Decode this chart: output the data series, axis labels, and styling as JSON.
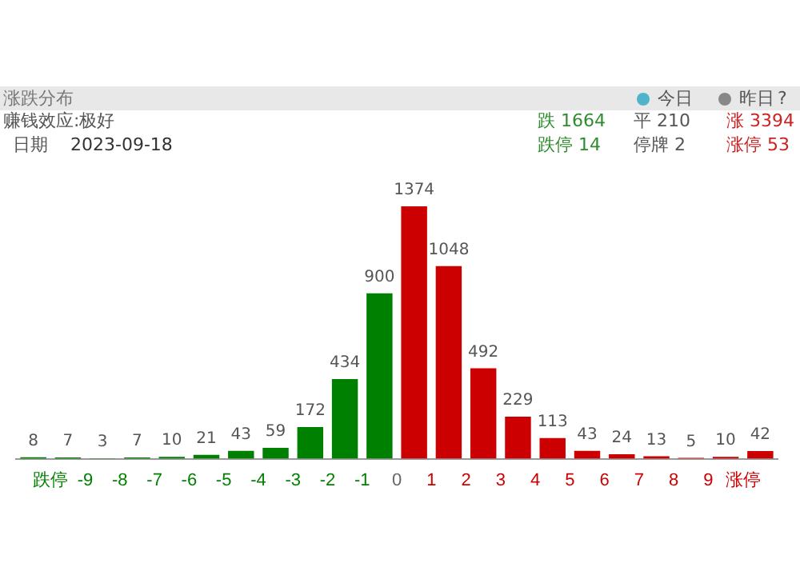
{
  "chart_data": {
    "type": "bar",
    "title": "涨跌分布",
    "annotations": [
      "今日",
      "昨日",
      "?",
      "赚钱效应:极好",
      "日期",
      "2023-09-18",
      "跌 1664",
      "平 210",
      "涨 3394",
      "跌停 14",
      "停牌 2",
      "涨停 53"
    ],
    "x": [
      -10.5,
      -9.5,
      -8.5,
      -7.5,
      -6.5,
      -5.5,
      -4.5,
      -3.5,
      -2.5,
      -1.5,
      -0.5,
      0.5,
      1.5,
      2.5,
      3.5,
      4.5,
      5.5,
      6.5,
      7.5,
      8.5,
      9.5,
      10.5
    ],
    "values": [
      8,
      7,
      3,
      7,
      10,
      21,
      43,
      59,
      172,
      434,
      900,
      1374,
      1048,
      492,
      229,
      113,
      43,
      24,
      13,
      5,
      10,
      42
    ],
    "colors": [
      "#008000",
      "#008000",
      "#008000",
      "#008000",
      "#008000",
      "#008000",
      "#008000",
      "#008000",
      "#008000",
      "#008000",
      "#008000",
      "#cc0000",
      "#cc0000",
      "#cc0000",
      "#cc0000",
      "#cc0000",
      "#cc0000",
      "#cc0000",
      "#cc0000",
      "#cc0000",
      "#cc0000",
      "#cc0000"
    ],
    "xlim": [
      -11,
      11
    ],
    "xticks": [
      {
        "value": -10,
        "label": "跌停"
      },
      -9,
      -8,
      -7,
      -6,
      -5,
      -4,
      -3,
      -2,
      -1,
      0,
      1,
      2,
      3,
      4,
      5,
      6,
      7,
      8,
      9,
      {
        "value": 10,
        "label": "涨停"
      }
    ],
    "data_labels": true,
    "legend": false,
    "grid": false
  }
}
